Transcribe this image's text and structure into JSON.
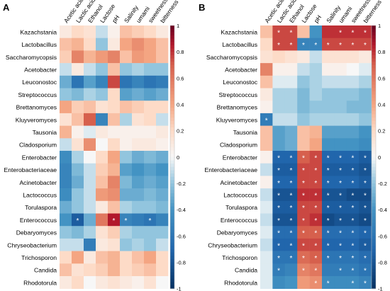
{
  "colors": {
    "negative": "#053061",
    "neutral": "#f7f7f7",
    "positive": "#67001f",
    "star": "#ffffff"
  },
  "chart_data": [
    {
      "type": "heatmap",
      "panel_label": "A",
      "columns": [
        "Acetic acid",
        "Lactic acid",
        "Ethanol",
        "Lactose",
        "pH",
        "Salinity",
        "umami",
        "sweetness",
        "bitterness"
      ],
      "rows": [
        "Kazachstania",
        "Lactobacillus",
        "Saccharomycopsis",
        "Acetobacter",
        "Leuconostoc",
        "Streptococcus",
        "Brettanomyces",
        "Kluyveromyces",
        "Tausonia",
        "Cladosporium",
        "Enterobacter",
        "Enterobacteriaceae",
        "Acinetobacter",
        "Lactococcus",
        "Torulaspora",
        "Enterococcus",
        "Debaryomyces",
        "Chryseobacterium",
        "Trichosporon",
        "Candida",
        "Rhodotorula"
      ],
      "values": [
        [
          0.1,
          0.2,
          0.15,
          -0.1,
          0.05,
          0.3,
          0.25,
          0.2,
          0.1
        ],
        [
          0.3,
          0.35,
          0.2,
          -0.2,
          0.1,
          0.4,
          0.5,
          0.4,
          0.3
        ],
        [
          0.25,
          0.55,
          0.35,
          0.45,
          0.55,
          0.3,
          0.45,
          0.4,
          0.3
        ],
        [
          -0.1,
          0.1,
          -0.1,
          -0.2,
          0.3,
          -0.2,
          -0.15,
          -0.2,
          -0.2
        ],
        [
          -0.3,
          -0.6,
          -0.35,
          -0.5,
          0.75,
          -0.6,
          -0.5,
          -0.6,
          -0.55
        ],
        [
          -0.2,
          -0.25,
          -0.15,
          -0.2,
          0.2,
          -0.35,
          -0.3,
          -0.35,
          -0.3
        ],
        [
          0.4,
          0.25,
          0.3,
          0.15,
          0.2,
          0.3,
          0.25,
          0.2,
          0.2
        ],
        [
          0.15,
          0.3,
          0.7,
          -0.5,
          0.3,
          -0.15,
          0.15,
          0.2,
          -0.1
        ],
        [
          0.35,
          0.05,
          -0.05,
          0.1,
          0.05,
          0.05,
          0.05,
          0.05,
          0.1
        ],
        [
          -0.1,
          0.15,
          0.5,
          0.0,
          0.2,
          0.05,
          0.1,
          0.1,
          0.05
        ],
        [
          -0.45,
          -0.15,
          0.0,
          0.2,
          0.4,
          -0.2,
          -0.3,
          -0.25,
          -0.3
        ],
        [
          -0.5,
          -0.25,
          -0.1,
          0.25,
          0.35,
          -0.35,
          -0.4,
          -0.35,
          -0.4
        ],
        [
          -0.5,
          -0.3,
          -0.1,
          0.3,
          0.55,
          -0.25,
          -0.35,
          -0.3,
          -0.35
        ],
        [
          -0.45,
          -0.2,
          -0.1,
          0.45,
          0.5,
          -0.3,
          -0.3,
          -0.25,
          -0.3
        ],
        [
          -0.3,
          -0.2,
          -0.1,
          0.1,
          0.3,
          -0.15,
          -0.2,
          -0.2,
          -0.25
        ],
        [
          -0.4,
          -0.75,
          -0.3,
          0.6,
          0.85,
          -0.5,
          -0.55,
          -0.6,
          -0.5
        ],
        [
          -0.2,
          -0.25,
          -0.15,
          0.15,
          0.25,
          -0.15,
          -0.2,
          -0.2,
          -0.2
        ],
        [
          -0.1,
          -0.1,
          -0.55,
          0.1,
          0.15,
          -0.2,
          -0.15,
          -0.2,
          -0.1
        ],
        [
          0.2,
          0.4,
          0.1,
          0.3,
          0.35,
          0.2,
          0.3,
          0.4,
          0.2
        ],
        [
          0.3,
          0.15,
          0.2,
          0.25,
          0.35,
          0.2,
          0.25,
          0.3,
          0.2
        ],
        [
          0.1,
          0.2,
          0.0,
          0.1,
          0.15,
          0.1,
          0.05,
          0.15,
          0.0
        ]
      ],
      "significant": [
        [
          15,
          1
        ],
        [
          15,
          4
        ],
        [
          15,
          5
        ],
        [
          15,
          7
        ]
      ],
      "marker": "*",
      "colorbar": {
        "min": -1,
        "max": 1,
        "ticks": [
          1,
          0.8,
          0.6,
          0.4,
          0.2,
          0,
          -0.2,
          -0.4,
          -0.6,
          -0.8,
          -1
        ]
      }
    },
    {
      "type": "heatmap",
      "panel_label": "B",
      "columns": [
        "Acetic acid",
        "Lactic acid",
        "Ethanol",
        "Lactose",
        "pH",
        "Salinity",
        "umami",
        "sweetness",
        "bitterness"
      ],
      "rows": [
        "Kazachstania",
        "Lactobacillus",
        "Saccharomycopsis",
        "Acetobacter",
        "Leuconostoc",
        "Streptococcus",
        "Brettanomyces",
        "Kluyveromyces",
        "Tausonia",
        "Cladosporium",
        "Enterobacter",
        "Enterobacteriaceae",
        "Acinetobacter",
        "Lactococcus",
        "Torulaspora",
        "Enterococcus",
        "Debaryomyces",
        "Chryseobacterium",
        "Trichosporon",
        "Candida",
        "Rhodotorula"
      ],
      "values": [
        [
          0.3,
          0.75,
          0.75,
          0.3,
          -0.4,
          0.8,
          0.8,
          0.8,
          0.8
        ],
        [
          0.2,
          0.75,
          0.75,
          -0.5,
          -0.5,
          0.75,
          0.75,
          0.75,
          0.75
        ],
        [
          0.15,
          0.2,
          0.15,
          0.1,
          -0.1,
          0.15,
          0.15,
          0.15,
          0.1
        ],
        [
          0.55,
          0.05,
          0.05,
          -0.1,
          -0.15,
          0.05,
          0.05,
          0.0,
          -0.05
        ],
        [
          0.3,
          -0.05,
          -0.05,
          -0.2,
          -0.15,
          -0.1,
          -0.1,
          -0.1,
          -0.15
        ],
        [
          0.1,
          -0.15,
          -0.15,
          -0.25,
          -0.15,
          -0.2,
          -0.2,
          -0.2,
          -0.25
        ],
        [
          0.05,
          -0.15,
          -0.15,
          -0.25,
          -0.2,
          -0.2,
          -0.2,
          -0.25,
          -0.25
        ],
        [
          -0.55,
          -0.1,
          -0.1,
          -0.2,
          -0.15,
          -0.15,
          -0.15,
          -0.15,
          -0.2
        ],
        [
          0.3,
          -0.35,
          -0.3,
          0.3,
          0.35,
          -0.35,
          -0.35,
          -0.35,
          -0.4
        ],
        [
          0.3,
          -0.35,
          -0.3,
          0.3,
          0.4,
          -0.4,
          -0.4,
          -0.4,
          -0.45
        ],
        [
          0.05,
          -0.7,
          -0.7,
          0.7,
          0.75,
          -0.7,
          -0.7,
          -0.7,
          -0.75
        ],
        [
          -0.1,
          -0.75,
          -0.75,
          0.75,
          0.75,
          -0.75,
          -0.75,
          -0.75,
          -0.8
        ],
        [
          0.05,
          -0.7,
          -0.7,
          0.75,
          0.75,
          -0.7,
          -0.7,
          -0.7,
          -0.75
        ],
        [
          -0.1,
          -0.8,
          -0.8,
          0.8,
          0.8,
          -0.8,
          -0.8,
          -0.85,
          -0.85
        ],
        [
          -0.05,
          -0.75,
          -0.75,
          0.75,
          0.75,
          -0.75,
          -0.75,
          -0.75,
          -0.8
        ],
        [
          -0.1,
          -0.8,
          -0.8,
          0.75,
          0.8,
          -0.85,
          -0.8,
          -0.8,
          -0.85
        ],
        [
          -0.05,
          -0.65,
          -0.65,
          0.7,
          0.7,
          -0.65,
          -0.65,
          -0.65,
          -0.7
        ],
        [
          -0.1,
          -0.7,
          -0.7,
          0.75,
          0.75,
          -0.7,
          -0.7,
          -0.7,
          -0.75
        ],
        [
          -0.05,
          -0.6,
          -0.6,
          0.65,
          0.7,
          -0.6,
          -0.6,
          -0.6,
          -0.65
        ],
        [
          -0.05,
          -0.55,
          -0.5,
          0.55,
          0.6,
          -0.55,
          -0.55,
          -0.55,
          -0.6
        ],
        [
          -0.05,
          -0.45,
          -0.4,
          0.45,
          0.5,
          -0.45,
          -0.45,
          -0.45,
          -0.5
        ]
      ],
      "significant": [
        [
          0,
          1
        ],
        [
          0,
          2
        ],
        [
          0,
          6
        ],
        [
          0,
          7
        ],
        [
          0,
          8
        ],
        [
          1,
          1
        ],
        [
          1,
          2
        ],
        [
          1,
          3
        ],
        [
          1,
          4
        ],
        [
          1,
          5
        ],
        [
          1,
          6
        ],
        [
          1,
          7
        ],
        [
          1,
          8
        ],
        [
          7,
          0
        ],
        [
          10,
          1
        ],
        [
          10,
          2
        ],
        [
          10,
          3
        ],
        [
          10,
          4
        ],
        [
          10,
          5
        ],
        [
          10,
          6
        ],
        [
          10,
          7
        ],
        [
          10,
          8
        ],
        [
          11,
          1
        ],
        [
          11,
          2
        ],
        [
          11,
          3
        ],
        [
          11,
          4
        ],
        [
          11,
          5
        ],
        [
          11,
          6
        ],
        [
          11,
          7
        ],
        [
          11,
          8
        ],
        [
          12,
          1
        ],
        [
          12,
          2
        ],
        [
          12,
          3
        ],
        [
          12,
          4
        ],
        [
          12,
          5
        ],
        [
          12,
          6
        ],
        [
          12,
          7
        ],
        [
          12,
          8
        ],
        [
          13,
          1
        ],
        [
          13,
          2
        ],
        [
          13,
          3
        ],
        [
          13,
          4
        ],
        [
          13,
          5
        ],
        [
          13,
          6
        ],
        [
          13,
          7
        ],
        [
          13,
          8
        ],
        [
          14,
          1
        ],
        [
          14,
          2
        ],
        [
          14,
          3
        ],
        [
          14,
          4
        ],
        [
          14,
          5
        ],
        [
          14,
          6
        ],
        [
          14,
          7
        ],
        [
          14,
          8
        ],
        [
          15,
          1
        ],
        [
          15,
          2
        ],
        [
          15,
          3
        ],
        [
          15,
          4
        ],
        [
          15,
          5
        ],
        [
          15,
          6
        ],
        [
          15,
          7
        ],
        [
          15,
          8
        ],
        [
          16,
          1
        ],
        [
          16,
          2
        ],
        [
          16,
          3
        ],
        [
          16,
          4
        ],
        [
          16,
          5
        ],
        [
          16,
          6
        ],
        [
          16,
          7
        ],
        [
          16,
          8
        ],
        [
          17,
          1
        ],
        [
          17,
          2
        ],
        [
          17,
          3
        ],
        [
          17,
          4
        ],
        [
          17,
          5
        ],
        [
          17,
          6
        ],
        [
          17,
          7
        ],
        [
          17,
          8
        ],
        [
          18,
          1
        ],
        [
          18,
          2
        ],
        [
          18,
          3
        ],
        [
          18,
          4
        ],
        [
          18,
          5
        ],
        [
          18,
          6
        ],
        [
          18,
          7
        ],
        [
          18,
          8
        ],
        [
          19,
          1
        ],
        [
          19,
          3
        ],
        [
          19,
          4
        ],
        [
          19,
          6
        ],
        [
          19,
          7
        ],
        [
          19,
          8
        ],
        [
          20,
          4
        ],
        [
          20,
          5
        ],
        [
          20,
          7
        ],
        [
          20,
          8
        ]
      ],
      "marker": "*",
      "colorbar": {
        "min": -1,
        "max": 1,
        "ticks": [
          1,
          0.8,
          0.6,
          0.4,
          0.2,
          0,
          -0.2,
          -0.4,
          -0.6,
          -0.8,
          -1
        ]
      }
    }
  ]
}
